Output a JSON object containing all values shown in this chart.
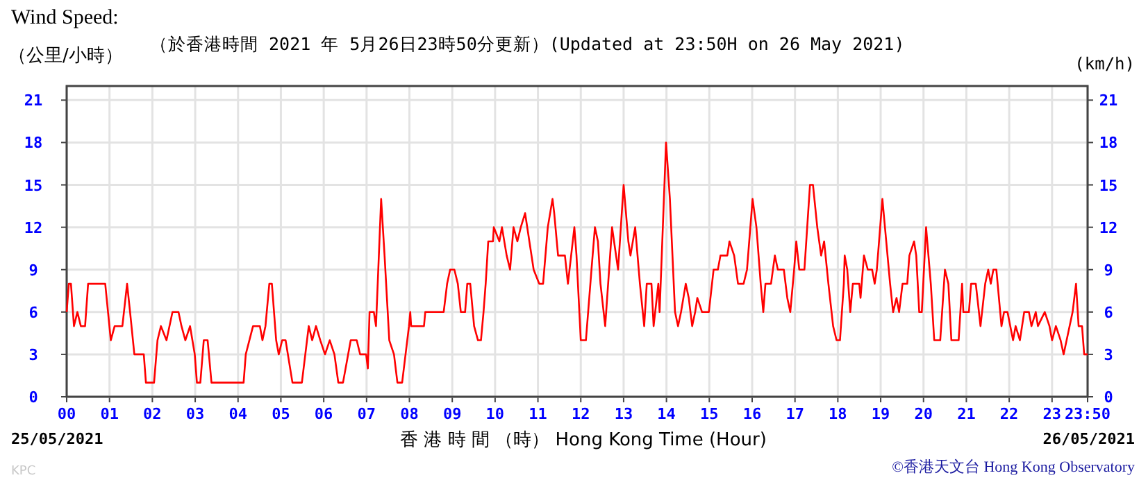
{
  "chart_data": {
    "type": "line",
    "title": "Wind Speed:",
    "subtitle": "（於香港時間 2021 年 5月26日23時50分更新）(Updated at 23:50H on 26 May 2021)",
    "ylabel": "（公里/小時）",
    "y2label": "(km/h)",
    "xlabel": "香 港 時 間 （時） Hong Kong Time (Hour)",
    "annotations": [
      "25/05/2021",
      "26/05/2021",
      "©香港天文台 Hong Kong Observatory",
      "KPC"
    ],
    "xlim": [
      0,
      23.83
    ],
    "xticks": [
      {
        "value": 0,
        "label": "00"
      },
      {
        "value": 1,
        "label": "01"
      },
      {
        "value": 2,
        "label": "02"
      },
      {
        "value": 3,
        "label": "03"
      },
      {
        "value": 4,
        "label": "04"
      },
      {
        "value": 5,
        "label": "05"
      },
      {
        "value": 6,
        "label": "06"
      },
      {
        "value": 7,
        "label": "07"
      },
      {
        "value": 8,
        "label": "08"
      },
      {
        "value": 9,
        "label": "09"
      },
      {
        "value": 10,
        "label": "10"
      },
      {
        "value": 11,
        "label": "11"
      },
      {
        "value": 12,
        "label": "12"
      },
      {
        "value": 13,
        "label": "13"
      },
      {
        "value": 14,
        "label": "14"
      },
      {
        "value": 15,
        "label": "15"
      },
      {
        "value": 16,
        "label": "16"
      },
      {
        "value": 17,
        "label": "17"
      },
      {
        "value": 18,
        "label": "18"
      },
      {
        "value": 19,
        "label": "19"
      },
      {
        "value": 20,
        "label": "20"
      },
      {
        "value": 21,
        "label": "21"
      },
      {
        "value": 22,
        "label": "22"
      },
      {
        "value": 23,
        "label": "23"
      },
      {
        "value": 23.83,
        "label": "23:50"
      }
    ],
    "ylim": [
      0,
      22
    ],
    "yticks": [
      0,
      3,
      6,
      9,
      12,
      15,
      18,
      21
    ],
    "y2lim": [
      0,
      22
    ],
    "y2ticks": [
      0,
      3,
      6,
      9,
      12,
      15,
      18,
      21
    ],
    "grid": true,
    "marker": "none",
    "line_style": "solid",
    "series": [
      {
        "color": "#ff0000",
        "x": [
          0,
          0.05,
          0.1,
          0.17,
          0.25,
          0.33,
          0.43,
          0.5,
          0.9,
          1.03,
          1.12,
          1.3,
          1.41,
          1.48,
          1.58,
          1.8,
          1.85,
          2.04,
          2.12,
          2.2,
          2.33,
          2.47,
          2.61,
          2.68,
          2.77,
          2.88,
          2.99,
          3.04,
          3.12,
          3.2,
          3.29,
          3.38,
          4.13,
          4.18,
          4.35,
          4.51,
          4.57,
          4.64,
          4.73,
          4.79,
          4.89,
          4.95,
          5.03,
          5.11,
          5.27,
          5.49,
          5.65,
          5.73,
          5.82,
          5.92,
          6.03,
          6.14,
          6.25,
          6.34,
          6.45,
          6.63,
          6.77,
          6.85,
          6.99,
          7.03,
          7.07,
          7.17,
          7.22,
          7.34,
          7.42,
          7.53,
          7.64,
          7.72,
          7.83,
          7.99,
          8.02,
          8.04,
          8.34,
          8.37,
          8.8,
          8.88,
          8.95,
          9.05,
          9.13,
          9.2,
          9.3,
          9.35,
          9.42,
          9.51,
          9.6,
          9.67,
          9.73,
          9.78,
          9.84,
          9.95,
          9.97,
          10.1,
          10.16,
          10.27,
          10.35,
          10.43,
          10.52,
          10.6,
          10.7,
          10.8,
          10.9,
          11.03,
          11.12,
          11.23,
          11.34,
          11.38,
          11.47,
          11.63,
          11.7,
          11.85,
          11.9,
          12.0,
          12.12,
          12.25,
          12.33,
          12.4,
          12.46,
          12.57,
          12.73,
          12.87,
          13.0,
          13.11,
          13.16,
          13.27,
          13.38,
          13.48,
          13.54,
          13.65,
          13.7,
          13.81,
          13.84,
          13.99,
          14.08,
          14.2,
          14.27,
          14.34,
          14.45,
          14.52,
          14.6,
          14.67,
          14.72,
          14.83,
          14.99,
          15.1,
          15.2,
          15.26,
          15.42,
          15.47,
          15.58,
          15.67,
          15.8,
          15.88,
          16.01,
          16.1,
          16.2,
          16.26,
          16.31,
          16.44,
          16.53,
          16.6,
          16.74,
          16.82,
          16.89,
          16.98,
          17.03,
          17.1,
          17.22,
          17.35,
          17.42,
          17.52,
          17.61,
          17.68,
          17.78,
          17.89,
          17.97,
          18.05,
          18.14,
          18.16,
          18.22,
          18.29,
          18.35,
          18.5,
          18.53,
          18.61,
          18.7,
          18.8,
          18.86,
          18.91,
          19.04,
          19.1,
          19.22,
          19.29,
          19.37,
          19.43,
          19.51,
          19.62,
          19.67,
          19.78,
          19.83,
          19.9,
          19.96,
          20.06,
          20.17,
          20.25,
          20.39,
          20.5,
          20.58,
          20.65,
          20.82,
          20.9,
          20.93,
          21.06,
          21.11,
          21.22,
          21.33,
          21.44,
          21.51,
          21.57,
          21.63,
          21.7,
          21.82,
          21.88,
          21.96,
          22.09,
          22.15,
          22.25,
          22.35,
          22.46,
          22.52,
          22.62,
          22.67,
          22.83,
          22.94,
          23.0,
          23.09,
          23.2,
          23.27,
          23.34,
          23.48,
          23.56,
          23.62,
          23.7,
          23.75,
          23.83
        ],
        "values": [
          6,
          8,
          8,
          5,
          6,
          5,
          5,
          8,
          8,
          4,
          5,
          5,
          8,
          6,
          3,
          3,
          1,
          1,
          4,
          5,
          4,
          6,
          6,
          5,
          4,
          5,
          3,
          1,
          1,
          4,
          4,
          1,
          1,
          3,
          5,
          5,
          4,
          5,
          8,
          8,
          4,
          3,
          4,
          4,
          1,
          1,
          5,
          4,
          5,
          4,
          3,
          4,
          3,
          1,
          1,
          4,
          4,
          3,
          3,
          2,
          6,
          6,
          5,
          14,
          10,
          4,
          3,
          1,
          1,
          5,
          6,
          5,
          5,
          6,
          6,
          8,
          9,
          9,
          8,
          6,
          6,
          8,
          8,
          5,
          4,
          4,
          6,
          8,
          11,
          11,
          12,
          11,
          12,
          10,
          9,
          12,
          11,
          12,
          13,
          11,
          9,
          8,
          8,
          12,
          14,
          13,
          10,
          10,
          8,
          12,
          10,
          4,
          4,
          9,
          12,
          11,
          8,
          5,
          12,
          9,
          15,
          11,
          10,
          12,
          8,
          5,
          8,
          8,
          5,
          8,
          6,
          18,
          14,
          6,
          5,
          6,
          8,
          7,
          5,
          6,
          7,
          6,
          6,
          9,
          9,
          10,
          10,
          11,
          10,
          8,
          8,
          9,
          14,
          12,
          8,
          6,
          8,
          8,
          10,
          9,
          9,
          7,
          6,
          9,
          11,
          9,
          9,
          15,
          15,
          12,
          10,
          11,
          8,
          5,
          4,
          4,
          8,
          10,
          9,
          6,
          8,
          8,
          7,
          10,
          9,
          9,
          8,
          9,
          14,
          12,
          8,
          6,
          7,
          6,
          8,
          8,
          10,
          11,
          10,
          6,
          6,
          12,
          8,
          4,
          4,
          9,
          8,
          4,
          4,
          8,
          6,
          6,
          8,
          8,
          5,
          8,
          9,
          8,
          9,
          9,
          5,
          6,
          6,
          4,
          5,
          4,
          6,
          6,
          5,
          6,
          5,
          6,
          5,
          4,
          5,
          4,
          3,
          4,
          6,
          8,
          5,
          5,
          3,
          3
        ]
      }
    ]
  }
}
